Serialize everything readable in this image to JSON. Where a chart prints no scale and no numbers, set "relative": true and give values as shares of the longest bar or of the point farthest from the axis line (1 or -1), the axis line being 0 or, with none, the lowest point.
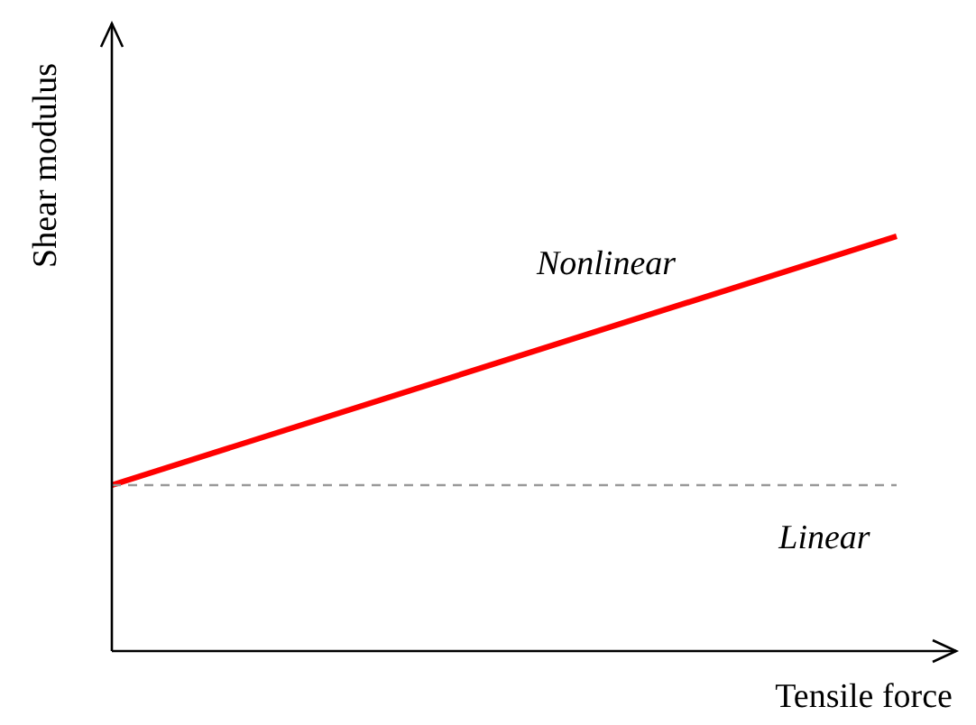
{
  "chart_data": {
    "type": "line",
    "relative": true,
    "xlabel": "Tensile force",
    "ylabel": "Shear modulus",
    "categories": [
      null,
      null
    ],
    "series": [
      {
        "name": "Nonlinear",
        "color": "#ff0000",
        "line_style": "solid",
        "values": [
          0.4,
          1
        ]
      },
      {
        "name": "Linear",
        "color": "#999999",
        "line_style": "dashed",
        "values": [
          0.4,
          0.4
        ]
      }
    ],
    "marker": "none"
  }
}
